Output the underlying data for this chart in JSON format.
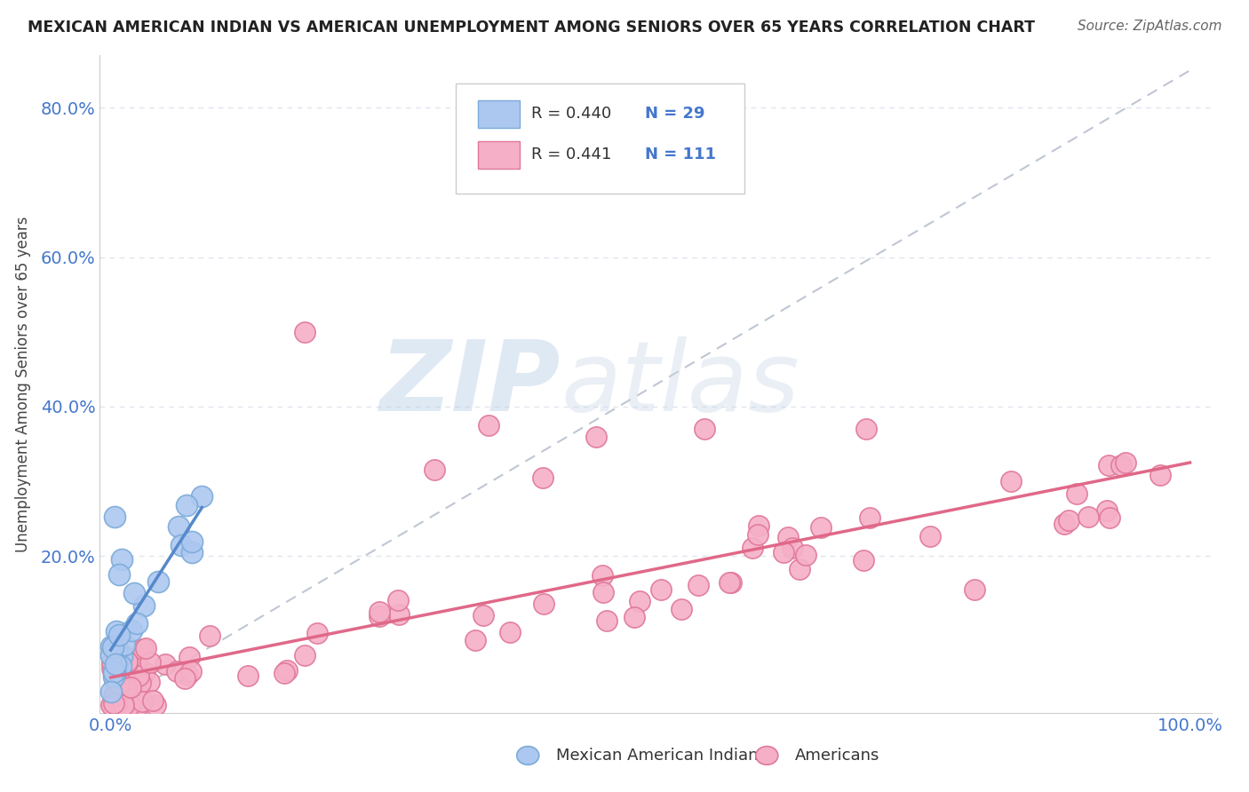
{
  "title": "MEXICAN AMERICAN INDIAN VS AMERICAN UNEMPLOYMENT AMONG SENIORS OVER 65 YEARS CORRELATION CHART",
  "source": "Source: ZipAtlas.com",
  "ylabel": "Unemployment Among Seniors over 65 years",
  "blue_color": "#adc8f0",
  "blue_edge_color": "#7aaad8",
  "pink_color": "#f5b0c8",
  "pink_edge_color": "#e07898",
  "blue_line_color": "#5588cc",
  "pink_line_color": "#e06888",
  "ref_line_color": "#b0b8c8",
  "legend_r_blue": "R = 0.440",
  "legend_n_blue": "N = 29",
  "legend_r_pink": "R = 0.441",
  "legend_n_pink": "N = 111",
  "watermark_zip": "ZIP",
  "watermark_atlas": "atlas",
  "background_color": "#ffffff",
  "tick_color": "#4477cc",
  "grid_color": "#e0e4ec",
  "title_color": "#222222",
  "source_color": "#666666",
  "ylabel_color": "#444444"
}
